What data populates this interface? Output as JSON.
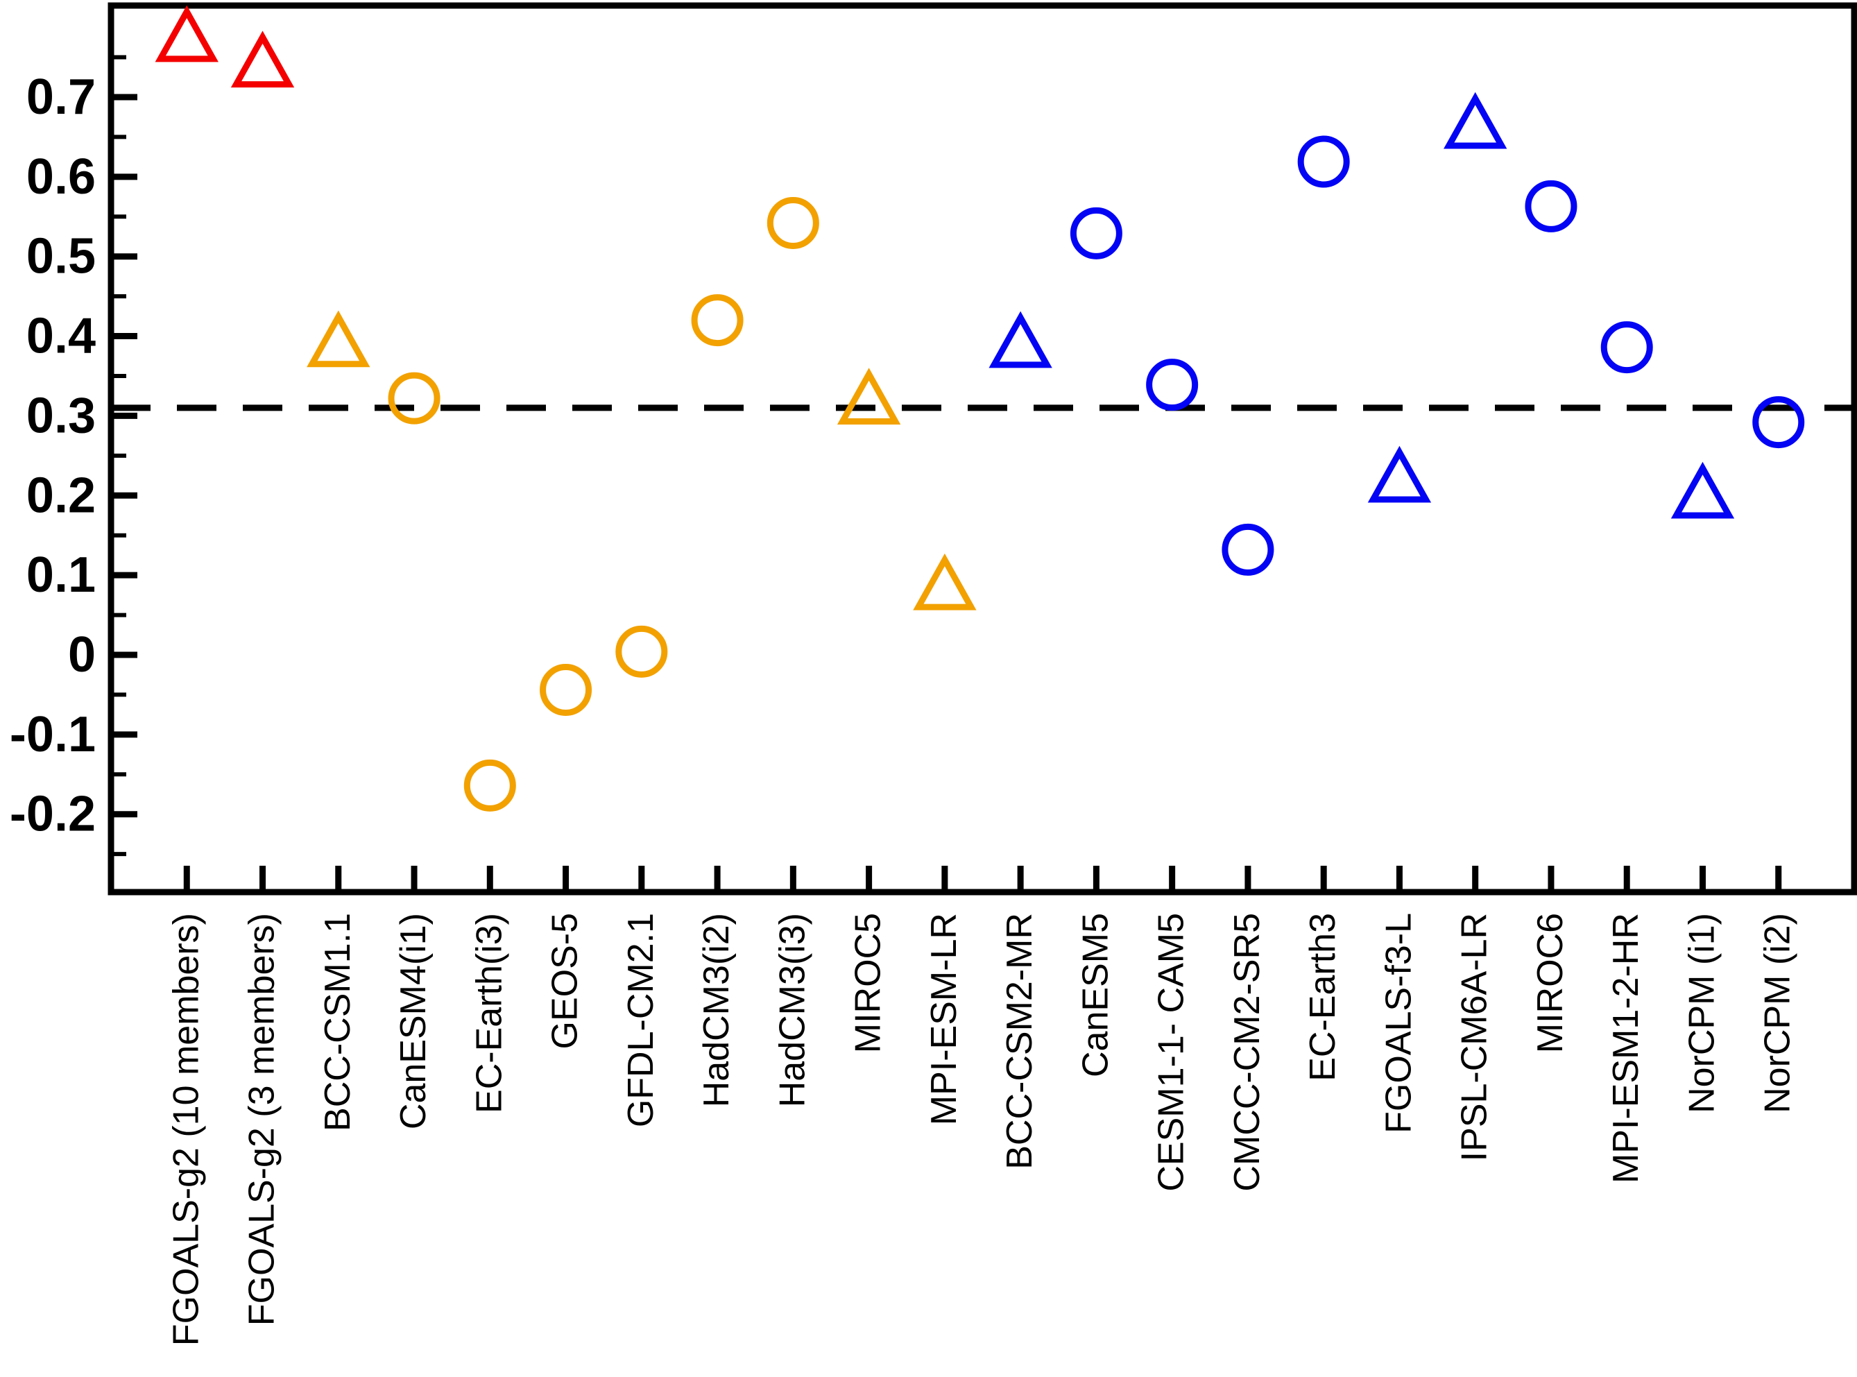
{
  "chart_data": {
    "type": "scatter",
    "title": "",
    "xlabel": "",
    "ylabel": "",
    "grid": false,
    "legend": "none",
    "box": true,
    "tick_direction": "in",
    "ylim": [
      -0.298,
      0.815
    ],
    "yticks_major": [
      0.7,
      0.6,
      0.5,
      0.4,
      0.3,
      0.2,
      0.1,
      0,
      -0.1,
      -0.2
    ],
    "ytick_labels": [
      "0.7",
      "0.6",
      "0.5",
      "0.4",
      "0.3",
      "0.2",
      "0.1",
      "0",
      "-0.1",
      "-0.2"
    ],
    "yticks_minor": [
      0.75,
      0.65,
      0.55,
      0.45,
      0.35,
      0.25,
      0.15,
      0.05,
      -0.05,
      -0.15,
      -0.25
    ],
    "reference_line": {
      "value": 0.31,
      "style": "dashed",
      "color": "#000000"
    },
    "colors": {
      "red": "#f40000",
      "orange": "#f2a100",
      "blue": "#0404f5",
      "axis": "#000000"
    },
    "marker_shapes": [
      "circle",
      "triangle"
    ],
    "points": [
      {
        "label": "FGOALS-g2 (10 members)",
        "group": "red",
        "marker": "triangle",
        "value": 0.775
      },
      {
        "label": "FGOALS-g2 (3 members)",
        "group": "red",
        "marker": "triangle",
        "value": 0.743
      },
      {
        "label": "BCC-CSM1.1",
        "group": "orange",
        "marker": "triangle",
        "value": 0.392
      },
      {
        "label": "CanESM4(i1)",
        "group": "orange",
        "marker": "circle",
        "value": 0.322
      },
      {
        "label": "EC-Earth(i3)",
        "group": "orange",
        "marker": "circle",
        "value": -0.164
      },
      {
        "label": "GEOS-5",
        "group": "orange",
        "marker": "circle",
        "value": -0.044
      },
      {
        "label": "GFDL-CM2.1",
        "group": "orange",
        "marker": "circle",
        "value": 0.004
      },
      {
        "label": "HadCM3(i2)",
        "group": "orange",
        "marker": "circle",
        "value": 0.42
      },
      {
        "label": "HadCM3(i3)",
        "group": "orange",
        "marker": "circle",
        "value": 0.542
      },
      {
        "label": "MIROC5",
        "group": "orange",
        "marker": "triangle",
        "value": 0.32
      },
      {
        "label": "MPI-ESM-LR",
        "group": "orange",
        "marker": "triangle",
        "value": 0.087
      },
      {
        "label": "BCC-CSM2-MR",
        "group": "blue",
        "marker": "triangle",
        "value": 0.391
      },
      {
        "label": "CanESM5",
        "group": "blue",
        "marker": "circle",
        "value": 0.529
      },
      {
        "label": "CESM1-1- CAM5",
        "group": "blue",
        "marker": "circle",
        "value": 0.339
      },
      {
        "label": "CMCC-CM2-SR5",
        "group": "blue",
        "marker": "circle",
        "value": 0.132
      },
      {
        "label": "EC-Earth3",
        "group": "blue",
        "marker": "circle",
        "value": 0.619
      },
      {
        "label": "FGOALS-f3-L",
        "group": "blue",
        "marker": "triangle",
        "value": 0.222
      },
      {
        "label": "IPSL-CM6A-LR",
        "group": "blue",
        "marker": "triangle",
        "value": 0.666
      },
      {
        "label": "MIROC6",
        "group": "blue",
        "marker": "circle",
        "value": 0.563
      },
      {
        "label": "MPI-ESM1-2-HR",
        "group": "blue",
        "marker": "circle",
        "value": 0.386
      },
      {
        "label": "NorCPM (i1)",
        "group": "blue",
        "marker": "triangle",
        "value": 0.202
      },
      {
        "label": "NorCPM (i2)",
        "group": "blue",
        "marker": "circle",
        "value": 0.292
      }
    ]
  }
}
